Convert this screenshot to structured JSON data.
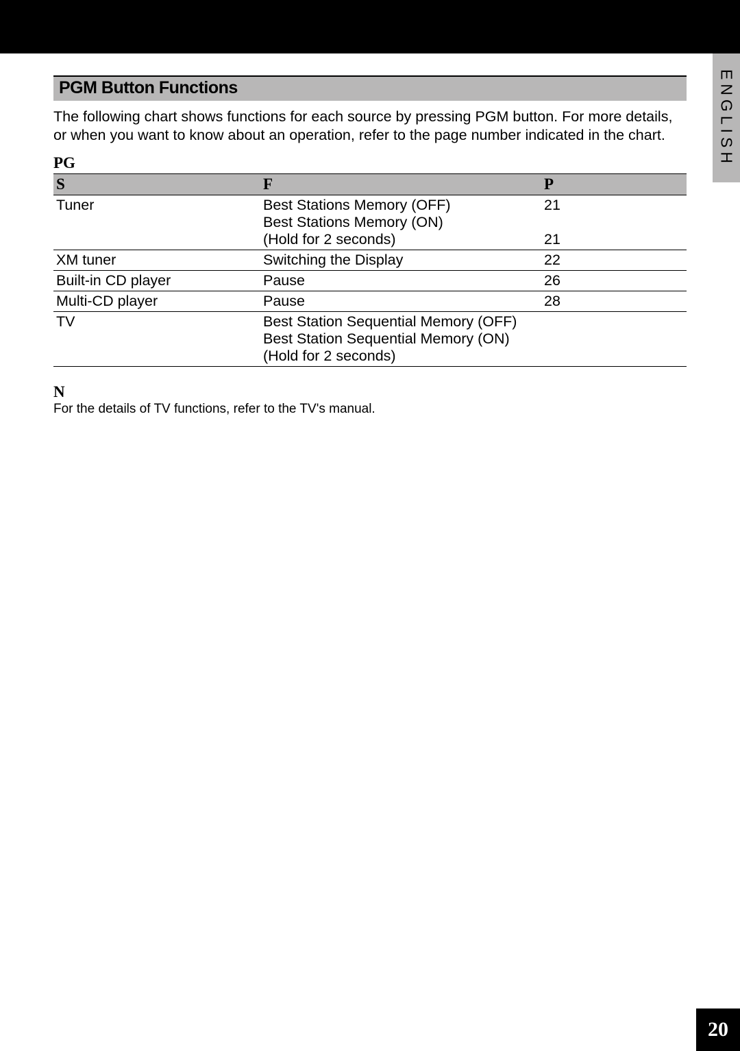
{
  "top_bar": {},
  "lang_tab": "ENGLISH",
  "section_title": "PGM Button Functions",
  "intro": "The following chart shows functions for each source by pressing PGM button. For more details, or when you want to know about an operation, refer to the page number indicated in the chart.",
  "subheading": "PG",
  "table": {
    "columns": {
      "source": "S",
      "function": "F",
      "page": "P"
    },
    "header_bg": "#b8b7b7",
    "rows": [
      {
        "source": "Tuner",
        "functions": [
          {
            "text": "Best Stations Memory (OFF)",
            "page": "21"
          },
          {
            "text": "Best Stations Memory (ON)",
            "page": ""
          },
          {
            "text": "(Hold for 2 seconds)",
            "page": "21"
          }
        ]
      },
      {
        "source": "XM tuner",
        "functions": [
          {
            "text": "Switching the Display",
            "page": "22"
          }
        ]
      },
      {
        "source": "Built-in CD player",
        "functions": [
          {
            "text": "Pause",
            "page": "26"
          }
        ]
      },
      {
        "source": "Multi-CD player",
        "functions": [
          {
            "text": "Pause",
            "page": "28"
          }
        ]
      },
      {
        "source": "TV",
        "functions": [
          {
            "text": "Best Station Sequential Memory (OFF)",
            "page": ""
          },
          {
            "text": "Best Station Sequential Memory (ON)",
            "page": ""
          },
          {
            "text": "(Hold for 2 seconds)",
            "page": ""
          }
        ]
      }
    ]
  },
  "note": {
    "head": "N",
    "text": "For the details of TV functions, refer to the TV's manual."
  },
  "page_number": "20",
  "colors": {
    "black": "#000000",
    "grey": "#b8b7b7",
    "white": "#ffffff"
  }
}
